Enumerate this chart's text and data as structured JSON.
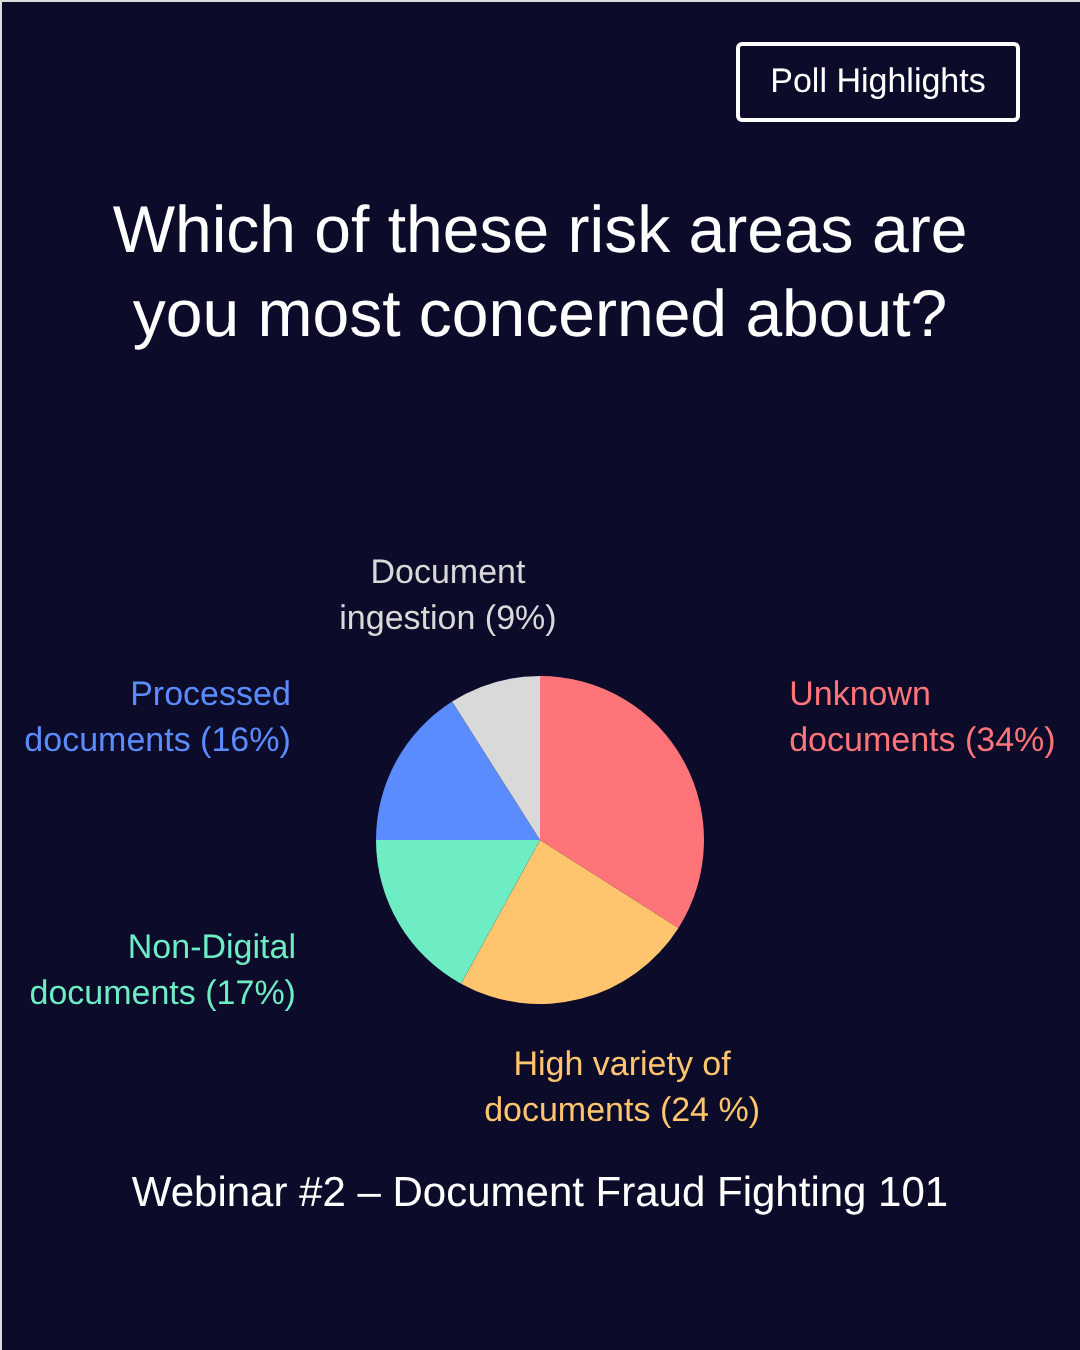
{
  "chart_data": {
    "type": "pie",
    "title": "Which of these risk areas are you most concerned about?",
    "categories": [
      "Unknown documents (34%)",
      "High variety of documents (24 %)",
      "Non-Digital documents (17%)",
      "Processed documents (16%)",
      "Document ingestion (9%)"
    ],
    "values": [
      34,
      24,
      17,
      16,
      9
    ],
    "colors": [
      "#ff7479",
      "#ffc56e",
      "#6eecc4",
      "#5b8cff",
      "#d9d9d9"
    ],
    "annotations": [
      "Poll Highlights",
      "Webinar #2 – Document Fraud Fighting 101"
    ]
  }
}
